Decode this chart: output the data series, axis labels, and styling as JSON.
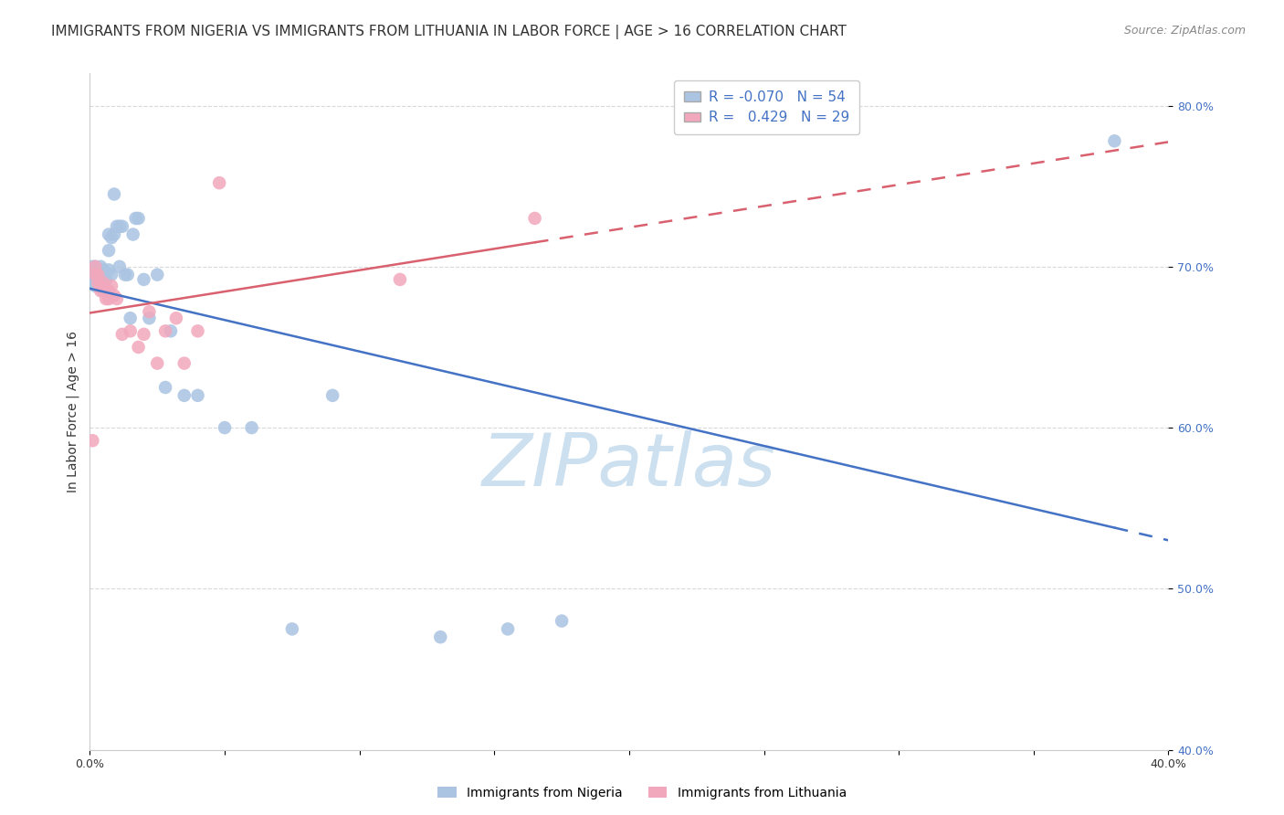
{
  "title": "IMMIGRANTS FROM NIGERIA VS IMMIGRANTS FROM LITHUANIA IN LABOR FORCE | AGE > 16 CORRELATION CHART",
  "source": "Source: ZipAtlas.com",
  "ylabel": "In Labor Force | Age > 16",
  "watermark": "ZIPatlas",
  "legend_r_nigeria": "-0.070",
  "legend_n_nigeria": "54",
  "legend_r_lithuania": "0.429",
  "legend_n_lithuania": "29",
  "xlim": [
    0.0,
    0.4
  ],
  "ylim": [
    0.4,
    0.82
  ],
  "xticks": [
    0.0,
    0.05,
    0.1,
    0.15,
    0.2,
    0.25,
    0.3,
    0.35,
    0.4
  ],
  "yticks": [
    0.4,
    0.5,
    0.6,
    0.7,
    0.8
  ],
  "color_nigeria": "#aac4e2",
  "color_lithuania": "#f2a8bc",
  "color_trendline_nigeria": "#4472c4",
  "color_trendline_lithuania": "#d9606e",
  "nigeria_x": [
    0.001,
    0.001,
    0.001,
    0.002,
    0.002,
    0.002,
    0.002,
    0.003,
    0.003,
    0.003,
    0.003,
    0.004,
    0.004,
    0.004,
    0.004,
    0.005,
    0.005,
    0.005,
    0.005,
    0.006,
    0.006,
    0.006,
    0.007,
    0.007,
    0.007,
    0.008,
    0.008,
    0.009,
    0.009,
    0.01,
    0.011,
    0.011,
    0.012,
    0.013,
    0.014,
    0.015,
    0.016,
    0.017,
    0.018,
    0.02,
    0.022,
    0.025,
    0.028,
    0.03,
    0.035,
    0.04,
    0.05,
    0.06,
    0.075,
    0.09,
    0.13,
    0.155,
    0.175,
    0.38
  ],
  "nigeria_y": [
    0.7,
    0.695,
    0.692,
    0.7,
    0.696,
    0.69,
    0.688,
    0.698,
    0.695,
    0.692,
    0.688,
    0.7,
    0.695,
    0.692,
    0.688,
    0.698,
    0.693,
    0.69,
    0.685,
    0.696,
    0.692,
    0.686,
    0.72,
    0.71,
    0.698,
    0.718,
    0.695,
    0.745,
    0.72,
    0.725,
    0.725,
    0.7,
    0.725,
    0.695,
    0.695,
    0.668,
    0.72,
    0.73,
    0.73,
    0.692,
    0.668,
    0.695,
    0.625,
    0.66,
    0.62,
    0.62,
    0.6,
    0.6,
    0.475,
    0.62,
    0.47,
    0.475,
    0.48,
    0.778
  ],
  "lithuania_x": [
    0.001,
    0.002,
    0.002,
    0.003,
    0.003,
    0.004,
    0.004,
    0.005,
    0.005,
    0.006,
    0.006,
    0.007,
    0.007,
    0.008,
    0.009,
    0.01,
    0.012,
    0.015,
    0.018,
    0.02,
    0.022,
    0.025,
    0.028,
    0.032,
    0.035,
    0.04,
    0.048,
    0.115,
    0.165
  ],
  "lithuania_y": [
    0.592,
    0.7,
    0.695,
    0.695,
    0.69,
    0.688,
    0.685,
    0.69,
    0.685,
    0.686,
    0.68,
    0.685,
    0.68,
    0.688,
    0.682,
    0.68,
    0.658,
    0.66,
    0.65,
    0.658,
    0.672,
    0.64,
    0.66,
    0.668,
    0.64,
    0.66,
    0.752,
    0.692,
    0.73
  ],
  "bg_color": "#ffffff",
  "grid_color": "#d9d9d9",
  "title_fontsize": 11,
  "source_fontsize": 9,
  "axis_label_fontsize": 10,
  "tick_fontsize": 9,
  "legend_fontsize": 11,
  "watermark_color": "#cce0f0",
  "watermark_fontsize": 58
}
